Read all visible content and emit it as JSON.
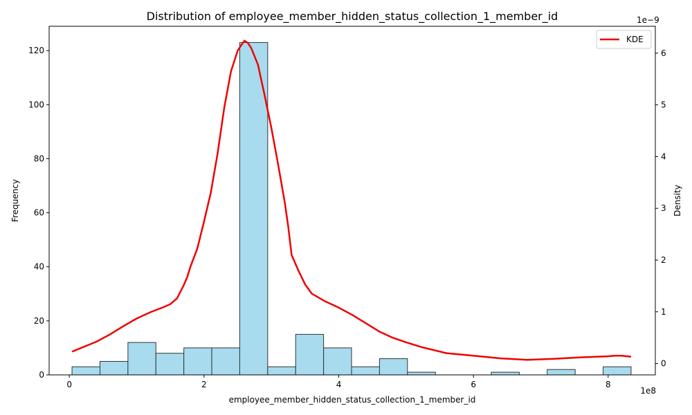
{
  "chart_data": {
    "type": "bar",
    "title": "Distribution of employee_member_hidden_status_collection_1_member_id",
    "xlabel": "employee_member_hidden_status_collection_1_member_id",
    "ylabel": "Frequency",
    "y2label": "Density",
    "x_scale_label": "1e8",
    "y2_scale_label": "1e−9",
    "xlim": [
      -0.3,
      8.7
    ],
    "ylim": [
      0,
      129
    ],
    "y2lim": [
      -0.22,
      6.52
    ],
    "x_ticks": [
      0,
      2,
      4,
      6,
      8
    ],
    "x_tick_labels": [
      "0",
      "2",
      "4",
      "6",
      "8"
    ],
    "y_ticks": [
      0,
      20,
      40,
      60,
      80,
      100,
      120
    ],
    "y_tick_labels": [
      "0",
      "20",
      "40",
      "60",
      "80",
      "100",
      "120"
    ],
    "y2_ticks": [
      0,
      1,
      2,
      3,
      4,
      5,
      6
    ],
    "y2_tick_labels": [
      "0",
      "1",
      "2",
      "3",
      "4",
      "5",
      "6"
    ],
    "bin_edges": [
      0.04,
      0.455,
      0.87,
      1.285,
      1.7,
      2.115,
      2.53,
      2.945,
      3.36,
      3.775,
      4.19,
      4.605,
      5.02,
      5.435,
      5.85,
      6.265,
      6.68,
      7.095,
      7.51,
      7.925,
      8.34
    ],
    "values": [
      3,
      5,
      12,
      8,
      10,
      10,
      123,
      3,
      15,
      10,
      3,
      6,
      1,
      0,
      0,
      1,
      0,
      2,
      0,
      3
    ],
    "bar_color": "#a8dbee",
    "bar_edge_color": "#333333",
    "series": [
      {
        "name": "KDE",
        "color": "#ee0000",
        "x": [
          0.04,
          0.4,
          0.6,
          0.8,
          1.0,
          1.2,
          1.4,
          1.5,
          1.6,
          1.7,
          1.75,
          1.8,
          1.9,
          2.0,
          2.1,
          2.2,
          2.3,
          2.4,
          2.5,
          2.55,
          2.6,
          2.65,
          2.7,
          2.8,
          2.9,
          3.0,
          3.1,
          3.2,
          3.25,
          3.3,
          3.4,
          3.5,
          3.6,
          3.8,
          4.0,
          4.2,
          4.4,
          4.6,
          4.8,
          5.0,
          5.25,
          5.6,
          6.0,
          6.4,
          6.8,
          7.2,
          7.6,
          8.0,
          8.1,
          8.2,
          8.34
        ],
        "y": [
          0.23,
          0.42,
          0.56,
          0.72,
          0.87,
          0.99,
          1.09,
          1.15,
          1.26,
          1.52,
          1.67,
          1.88,
          2.22,
          2.75,
          3.3,
          4.05,
          4.95,
          5.65,
          6.05,
          6.15,
          6.24,
          6.2,
          6.1,
          5.78,
          5.18,
          4.55,
          3.85,
          3.1,
          2.65,
          2.1,
          1.8,
          1.53,
          1.35,
          1.2,
          1.08,
          0.94,
          0.78,
          0.62,
          0.5,
          0.41,
          0.31,
          0.2,
          0.15,
          0.1,
          0.07,
          0.09,
          0.12,
          0.14,
          0.15,
          0.15,
          0.13
        ]
      }
    ],
    "legend": {
      "position": "top-right",
      "entries": [
        "KDE"
      ]
    }
  }
}
